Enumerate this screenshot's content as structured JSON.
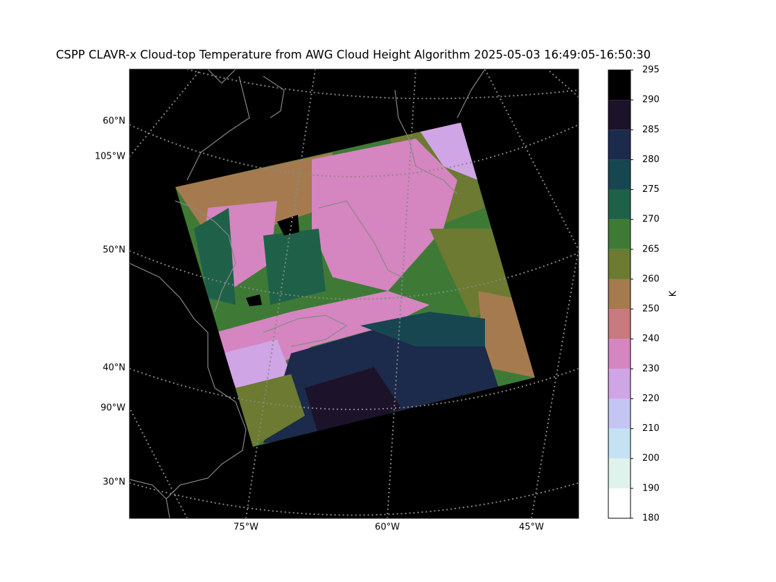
{
  "title": "CSPP CLAVR-x Cloud-top Temperature from AWG Cloud Height Algorithm 2025-05-03 16:49:05-16:50:30",
  "map": {
    "left_labels": [
      "60°N",
      "105°W",
      "50°N",
      "40°N",
      "90°W",
      "30°N"
    ],
    "bottom_labels": [
      "75°W",
      "60°W",
      "45°W"
    ]
  },
  "colorbar": {
    "label": "K",
    "boundaries": [
      180,
      190,
      200,
      210,
      220,
      230,
      240,
      250,
      260,
      265,
      270,
      275,
      280,
      285,
      290,
      295
    ],
    "colors": [
      "#ffffff",
      "#dff2ec",
      "#c5e2f2",
      "#c5c5f3",
      "#cfa5e5",
      "#d585c0",
      "#c87a7e",
      "#a57a4f",
      "#6c7a32",
      "#3e7a36",
      "#1f6148",
      "#174650",
      "#1c2a4b",
      "#1c1229",
      "#000000"
    ]
  }
}
